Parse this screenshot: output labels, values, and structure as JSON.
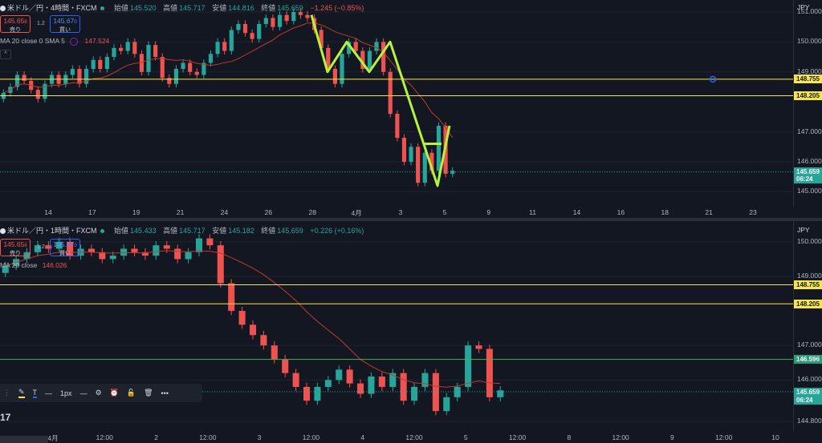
{
  "colors": {
    "bg": "#131722",
    "up": "#26a69a",
    "down": "#ef5350",
    "sma": "#c0392b",
    "yellow": "#f7e54a",
    "lime": "#b6f43a",
    "green_line": "#4caf50"
  },
  "top": {
    "symbol": "米ドル／円・4時間・FXCM",
    "ohlc": [
      {
        "k": "始値",
        "v": "145.520"
      },
      {
        "k": "高値",
        "v": "145.717"
      },
      {
        "k": "安値",
        "v": "144.816"
      },
      {
        "k": "終値",
        "v": "145.659"
      }
    ],
    "change": "−1.245 (−0.85%)",
    "sell_price": "145.65",
    "sell_price_small": "8",
    "sell_label": "売り",
    "qty": "1.2",
    "buy_price": "145.67",
    "buy_price_small": "0",
    "buy_label": "買い",
    "indicator": "MA 20 close 0 SMA 5",
    "indicator_value": "147.524",
    "currency": "JPY",
    "collapse_glyph": "^",
    "yticks": [
      {
        "label": "151.000",
        "v": 151
      },
      {
        "label": "150.000",
        "v": 150
      },
      {
        "label": "149.000",
        "v": 149
      },
      {
        "label": "147.000",
        "v": 147
      },
      {
        "label": "146.000",
        "v": 146
      },
      {
        "label": "145.000",
        "v": 145
      }
    ],
    "pills": [
      {
        "label": "148.755",
        "v": 148.755,
        "cls": "yellow"
      },
      {
        "label": "148.205",
        "v": 148.205,
        "cls": "yellow"
      },
      {
        "label": "145.659",
        "v": 145.659,
        "cls": "teal"
      },
      {
        "label": "06:24",
        "v": 145.42,
        "cls": "teal"
      }
    ],
    "xticks": [
      "14",
      "17",
      "19",
      "21",
      "24",
      "26",
      "28",
      "4月",
      "3",
      "5",
      "9",
      "11",
      "14",
      "16",
      "18",
      "21",
      "23"
    ]
  },
  "bottom": {
    "symbol": "米ドル／円・1時間・FXCM",
    "ohlc": [
      {
        "k": "始値",
        "v": "145.433"
      },
      {
        "k": "高値",
        "v": "145.717"
      },
      {
        "k": "安値",
        "v": "145.182"
      },
      {
        "k": "終値",
        "v": "145.659"
      }
    ],
    "change": "+0.226 (+0.16%)",
    "sell_price": "145.65",
    "sell_price_small": "8",
    "sell_label": "売り",
    "qty": "1.2",
    "buy_price": "145.67",
    "buy_price_small": "0",
    "buy_label": "買い",
    "indicator": "MA 20 close",
    "indicator_value": "146.026",
    "currency": "JPY",
    "yticks": [
      {
        "label": "150.000",
        "v": 150
      },
      {
        "label": "149.000",
        "v": 149
      },
      {
        "label": "147.000",
        "v": 147
      },
      {
        "label": "146.000",
        "v": 146
      },
      {
        "label": "144.800",
        "v": 144.8
      }
    ],
    "pills": [
      {
        "label": "148.755",
        "v": 148.755,
        "cls": "yellow"
      },
      {
        "label": "148.205",
        "v": 148.205,
        "cls": "yellow"
      },
      {
        "label": "146.596",
        "v": 146.596,
        "cls": "green"
      },
      {
        "label": "145.659",
        "v": 145.659,
        "cls": "teal"
      },
      {
        "label": "06:24",
        "v": 145.42,
        "cls": "teal"
      }
    ],
    "xticks": [
      "4月",
      "12:00",
      "2",
      "12:00",
      "3",
      "12:00",
      "4",
      "12:00",
      "5",
      "12:00",
      "8",
      "12:00",
      "9",
      "12:00",
      "10"
    ]
  },
  "toolbar": {
    "stroke": "1px"
  },
  "logo_text": "17",
  "chart_data": [
    {
      "type": "candlestick",
      "title": "米ドル／円・4時間・FXCM",
      "ylim": [
        144.5,
        151.4
      ],
      "xticks": [
        "14",
        "17",
        "19",
        "21",
        "24",
        "26",
        "28",
        "4月",
        "3",
        "5",
        "9",
        "11",
        "14",
        "16",
        "18",
        "21",
        "23"
      ],
      "horizontal_lines": [
        148.755,
        148.205
      ],
      "close_series": [
        148.3,
        148.5,
        148.9,
        148.7,
        148.4,
        148.1,
        148.6,
        148.9,
        148.6,
        148.9,
        149.1,
        148.6,
        149.1,
        149.4,
        149.1,
        149.5,
        149.8,
        149.7,
        150.0,
        149.6,
        149.0,
        149.9,
        149.5,
        148.8,
        148.6,
        149.1,
        149.3,
        149.0,
        148.9,
        149.3,
        149.6,
        150.0,
        149.7,
        150.4,
        150.6,
        150.3,
        150.1,
        150.6,
        150.8,
        150.5,
        150.9,
        150.7,
        151.0,
        150.9,
        150.8,
        150.4,
        149.8,
        149.1,
        148.6,
        149.6,
        150.0,
        149.7,
        149.1,
        149.7,
        150.0,
        149.0,
        147.6,
        146.8,
        146.0,
        146.5,
        145.3,
        146.3,
        145.7,
        147.2,
        145.6,
        145.7
      ],
      "sma": {
        "name": "MA 20 close 0 SMA 5",
        "last": 147.524
      }
    },
    {
      "type": "candlestick",
      "title": "米ドル／円・1時間・FXCM",
      "ylim": [
        144.5,
        150.6
      ],
      "xticks": [
        "4月",
        "12:00",
        "2",
        "12:00",
        "3",
        "12:00",
        "4",
        "12:00",
        "5",
        "12:00",
        "8",
        "12:00",
        "9",
        "12:00",
        "10"
      ],
      "horizontal_lines": [
        148.755,
        148.205,
        146.596
      ],
      "close_series": [
        149.3,
        149.5,
        149.7,
        149.9,
        149.8,
        150.0,
        149.6,
        149.8,
        149.7,
        149.5,
        149.6,
        149.8,
        149.7,
        149.6,
        149.9,
        149.8,
        149.5,
        149.7,
        150.1,
        149.9,
        148.8,
        148.0,
        147.6,
        147.3,
        147.0,
        146.6,
        146.2,
        145.8,
        145.4,
        145.8,
        146.0,
        146.3,
        145.9,
        145.6,
        146.1,
        145.8,
        146.2,
        145.4,
        145.8,
        146.2,
        145.1,
        145.5,
        145.8,
        147.0,
        146.9,
        145.5,
        145.7
      ],
      "ma": {
        "name": "MA 20 close",
        "last": 146.026
      }
    }
  ]
}
